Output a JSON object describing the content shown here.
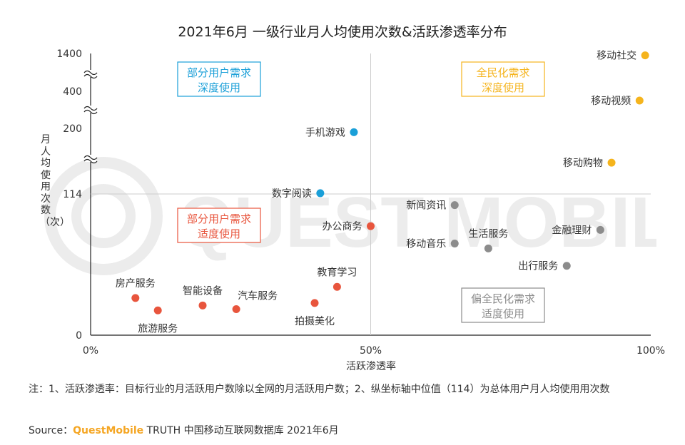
{
  "title": "2021年6月 一级行业月人均使用次数&活跃渗透率分布",
  "watermark_text": "QUEST MOBILE",
  "note": "注：1、活跃渗透率：目标行业的月活跃用户数除以全网的月活跃用户数；2、纵坐标轴中位值（114）为总体用户月人均使用用次数",
  "source": {
    "prefix": "Source：",
    "brand": "QuestMobile",
    "rest": " TRUTH 中国移动互联网数据库 2021年6月"
  },
  "colors": {
    "blue": "#1a9fd8",
    "yellow": "#f5b41d",
    "red": "#e8553d",
    "gray": "#8c8c8c",
    "axis": "#222222",
    "grid": "#cccccc"
  },
  "quadrants": [
    {
      "label_lines": [
        "部分用户需求",
        "深度使用"
      ],
      "color": "#1a9fd8",
      "position": "top-left"
    },
    {
      "label_lines": [
        "全民化需求",
        "深度使用"
      ],
      "color": "#f5b41d",
      "position": "top-right"
    },
    {
      "label_lines": [
        "部分用户需求",
        "适度使用"
      ],
      "color": "#e8553d",
      "position": "bottom-left"
    },
    {
      "label_lines": [
        "偏全民化需求",
        "适度使用"
      ],
      "color": "#8c8c8c",
      "position": "bottom-right"
    }
  ],
  "chart_data": {
    "type": "scatter",
    "title": "2021年6月 一级行业月人均使用次数&活跃渗透率分布",
    "xlabel": "活跃渗透率",
    "ylabel": "月人均使用次数（次）",
    "x_ticks": [
      "0%",
      "50%",
      "100%"
    ],
    "xlim": [
      0,
      100
    ],
    "y_scale": "broken",
    "y_ticks": [
      0,
      114,
      200,
      400,
      1400
    ],
    "y_median": 114,
    "grid": false,
    "points": [
      {
        "name": "移动社交",
        "x": 99,
        "y": 1350,
        "group": "yellow"
      },
      {
        "name": "移动视频",
        "x": 98,
        "y": 350,
        "group": "yellow"
      },
      {
        "name": "移动购物",
        "x": 93,
        "y": 155,
        "group": "yellow"
      },
      {
        "name": "手机游戏",
        "x": 47,
        "y": 195,
        "group": "blue"
      },
      {
        "name": "数字阅读",
        "x": 41,
        "y": 115,
        "group": "blue"
      },
      {
        "name": "办公商务",
        "x": 50,
        "y": 88,
        "group": "red"
      },
      {
        "name": "教育学习",
        "x": 44,
        "y": 39,
        "group": "red"
      },
      {
        "name": "拍摄美化",
        "x": 40,
        "y": 26,
        "group": "red"
      },
      {
        "name": "汽车服务",
        "x": 26,
        "y": 21,
        "group": "red"
      },
      {
        "name": "智能设备",
        "x": 20,
        "y": 24,
        "group": "red"
      },
      {
        "name": "房产服务",
        "x": 8,
        "y": 30,
        "group": "red"
      },
      {
        "name": "旅游服务",
        "x": 12,
        "y": 20,
        "group": "red"
      },
      {
        "name": "新闻资讯",
        "x": 65,
        "y": 105,
        "group": "gray"
      },
      {
        "name": "移动音乐",
        "x": 65,
        "y": 74,
        "group": "gray"
      },
      {
        "name": "生活服务",
        "x": 71,
        "y": 70,
        "group": "gray"
      },
      {
        "name": "金融理财",
        "x": 91,
        "y": 85,
        "group": "gray"
      },
      {
        "name": "出行服务",
        "x": 85,
        "y": 56,
        "group": "gray"
      }
    ]
  }
}
